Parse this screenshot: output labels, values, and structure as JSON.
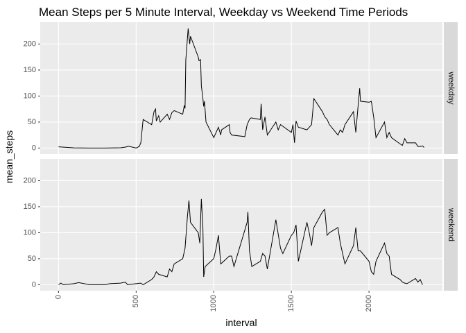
{
  "chart_data": {
    "type": "line",
    "title": "Mean Steps per 5 Minute Interval, Weekday vs Weekend Time Periods",
    "x_label": "interval",
    "y_label": "mean_steps",
    "xlim": [
      -118,
      2473
    ],
    "xticks": [
      0,
      500,
      1000,
      1500,
      2000
    ],
    "ylim": [
      -11.5,
      242
    ],
    "yticks": [
      0,
      50,
      100,
      150,
      200
    ],
    "grid": true,
    "facets": true,
    "series": [
      {
        "name": "weekday",
        "color": "#000000",
        "x": [
          0,
          100,
          200,
          300,
          400,
          435,
          450,
          500,
          520,
          530,
          545,
          600,
          615,
          625,
          630,
          645,
          655,
          700,
          715,
          730,
          745,
          800,
          810,
          815,
          820,
          830,
          835,
          845,
          850,
          900,
          905,
          915,
          920,
          930,
          935,
          940,
          950,
          1000,
          1015,
          1030,
          1045,
          1050,
          1100,
          1105,
          1115,
          1200,
          1215,
          1230,
          1240,
          1300,
          1305,
          1315,
          1330,
          1345,
          1400,
          1415,
          1430,
          1500,
          1510,
          1520,
          1530,
          1545,
          1600,
          1615,
          1630,
          1645,
          1700,
          1715,
          1730,
          1745,
          1800,
          1815,
          1830,
          1845,
          1900,
          1915,
          1930,
          1940,
          1945,
          2000,
          2015,
          2030,
          2045,
          2100,
          2115,
          2130,
          2145,
          2200,
          2215,
          2230,
          2245,
          2300,
          2315,
          2330,
          2345,
          2355
        ],
        "values": [
          2.3,
          0.4,
          0,
          0,
          0.5,
          2,
          3.5,
          0,
          3,
          10,
          55,
          45,
          70,
          75,
          52,
          62,
          50,
          65,
          55,
          68,
          72,
          65,
          82,
          76,
          170,
          210,
          230,
          200,
          215,
          175,
          168,
          170,
          120,
          95,
          80,
          90,
          50,
          20,
          30,
          40,
          25,
          35,
          45,
          30,
          25,
          22,
          45,
          55,
          58,
          55,
          85,
          35,
          60,
          25,
          50,
          35,
          45,
          30,
          45,
          10,
          52,
          40,
          35,
          40,
          45,
          95,
          70,
          60,
          55,
          45,
          25,
          35,
          30,
          45,
          70,
          30,
          82,
          115,
          90,
          88,
          90,
          60,
          20,
          50,
          20,
          30,
          20,
          8,
          5,
          18,
          10,
          10,
          3,
          3,
          4,
          1
        ]
      },
      {
        "name": "weekend",
        "color": "#000000",
        "x": [
          0,
          15,
          30,
          100,
          130,
          200,
          300,
          330,
          400,
          430,
          445,
          500,
          530,
          545,
          600,
          615,
          630,
          645,
          700,
          715,
          730,
          745,
          800,
          815,
          830,
          840,
          850,
          900,
          910,
          920,
          930,
          935,
          945,
          1000,
          1015,
          1030,
          1045,
          1100,
          1115,
          1130,
          1145,
          1200,
          1215,
          1220,
          1230,
          1245,
          1300,
          1315,
          1330,
          1345,
          1400,
          1430,
          1445,
          1500,
          1515,
          1530,
          1545,
          1600,
          1615,
          1630,
          1645,
          1700,
          1715,
          1730,
          1745,
          1800,
          1815,
          1830,
          1845,
          1900,
          1915,
          1930,
          1945,
          2000,
          2015,
          2030,
          2045,
          2100,
          2115,
          2130,
          2145,
          2200,
          2215,
          2230,
          2245,
          2300,
          2315,
          2330,
          2345
        ],
        "values": [
          0,
          3,
          0,
          2,
          4,
          0,
          0,
          2,
          3,
          5,
          0,
          2,
          3,
          0,
          10,
          15,
          25,
          20,
          15,
          30,
          25,
          40,
          50,
          70,
          130,
          162,
          120,
          100,
          80,
          165,
          110,
          15,
          35,
          50,
          70,
          95,
          40,
          55,
          55,
          35,
          50,
          105,
          120,
          140,
          65,
          35,
          45,
          60,
          55,
          30,
          125,
          70,
          60,
          95,
          100,
          115,
          45,
          120,
          100,
          75,
          110,
          140,
          145,
          95,
          100,
          110,
          80,
          60,
          40,
          75,
          110,
          65,
          65,
          45,
          25,
          20,
          45,
          80,
          60,
          55,
          20,
          10,
          5,
          3,
          2,
          12,
          5,
          10,
          0
        ]
      }
    ]
  }
}
